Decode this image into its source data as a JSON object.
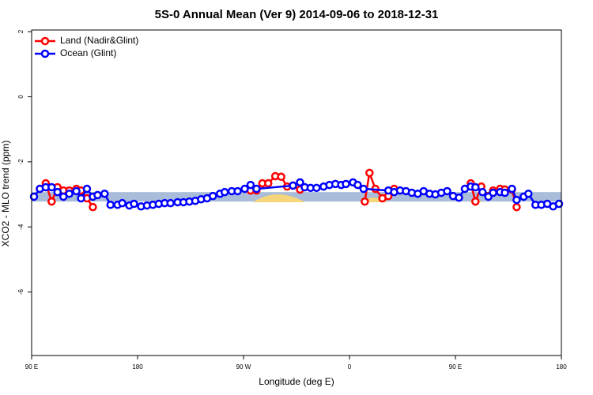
{
  "chart_data": {
    "type": "line",
    "title": "5S-0 Annual Mean (Ver 9)   2014-09-06 to 2018-12-31",
    "x_label": "Longitude (deg E)",
    "y_label": "XCO2 - MLO trend (ppm)",
    "xlim": [
      90,
      540
    ],
    "ylim": [
      -7.95,
      2.05
    ],
    "xticks": [
      {
        "value": 90,
        "label": "90 E"
      },
      {
        "value": 180,
        "label": "180"
      },
      {
        "value": 270,
        "label": "90 W"
      },
      {
        "value": 360,
        "label": "0"
      },
      {
        "value": 450,
        "label": "90 E"
      },
      {
        "value": 540,
        "label": "180"
      }
    ],
    "yticks": [
      2,
      0,
      -2,
      -4,
      -6
    ],
    "legend": "top-left",
    "band": {
      "color": "#a9bcd9",
      "ymin": -3.22,
      "ymax": -2.93
    },
    "series": [
      {
        "name": "Land (Nadir&Glint)",
        "color": "#ff0000",
        "x": [
          97,
          102,
          107,
          112,
          117,
          122,
          128,
          132,
          137,
          142,
          200,
          276,
          281,
          286,
          291,
          297,
          302,
          307,
          312,
          318,
          340,
          373,
          377,
          382,
          388,
          393,
          398,
          430,
          463,
          467,
          472,
          478,
          482,
          488,
          492,
          498,
          502
        ],
        "values": [
          -2.83,
          -2.66,
          -3.22,
          -2.78,
          -2.88,
          -2.88,
          -2.83,
          -2.88,
          -3.12,
          -3.39,
          null,
          -2.88,
          -2.88,
          -2.66,
          -2.66,
          -2.44,
          -2.46,
          -2.76,
          -2.73,
          -2.85,
          null,
          -3.22,
          -2.34,
          -2.83,
          -3.12,
          -3.05,
          -2.83,
          null,
          -2.66,
          -3.22,
          -2.76,
          -3.05,
          -2.88,
          -2.83,
          -2.85,
          -2.85,
          -3.39
        ]
      },
      {
        "name": "Ocean (Glint)",
        "color": "#0000ff",
        "x": [
          92,
          97,
          102,
          107,
          112,
          117,
          122,
          128,
          132,
          137,
          142,
          146,
          152,
          157,
          163,
          167,
          173,
          177,
          183,
          188,
          193,
          198,
          203,
          208,
          214,
          219,
          224,
          229,
          234,
          239,
          244,
          250,
          254,
          260,
          265,
          271,
          276,
          281,
          312,
          318,
          322,
          327,
          332,
          338,
          343,
          348,
          353,
          357,
          363,
          367,
          372,
          393,
          398,
          403,
          408,
          413,
          418,
          423,
          428,
          433,
          438,
          443,
          448,
          453,
          458,
          463,
          467,
          473,
          478,
          482,
          488,
          492,
          498,
          502,
          508,
          512,
          518,
          523,
          528,
          533,
          538
        ],
        "values": [
          -3.07,
          -2.83,
          -2.78,
          -2.78,
          -2.93,
          -3.07,
          -2.98,
          -2.9,
          -3.12,
          -2.83,
          -3.07,
          -3.02,
          -2.98,
          -3.32,
          -3.32,
          -3.27,
          -3.34,
          -3.29,
          -3.37,
          -3.34,
          -3.32,
          -3.29,
          -3.27,
          -3.27,
          -3.24,
          -3.24,
          -3.22,
          -3.2,
          -3.15,
          -3.12,
          -3.05,
          -2.98,
          -2.93,
          -2.9,
          -2.9,
          -2.83,
          -2.71,
          -2.83,
          -2.73,
          -2.63,
          -2.78,
          -2.8,
          -2.8,
          -2.76,
          -2.71,
          -2.68,
          -2.71,
          -2.68,
          -2.63,
          -2.71,
          -2.83,
          -2.88,
          -2.93,
          -2.88,
          -2.9,
          -2.95,
          -2.98,
          -2.9,
          -2.98,
          -3.0,
          -2.95,
          -2.9,
          -3.05,
          -3.1,
          -2.83,
          -2.76,
          -2.78,
          -2.93,
          -3.07,
          -2.95,
          -2.93,
          -2.95,
          -2.83,
          -3.17,
          -3.07,
          -2.98,
          -3.32,
          -3.32,
          -3.29,
          -3.37,
          -3.29
        ]
      }
    ]
  }
}
